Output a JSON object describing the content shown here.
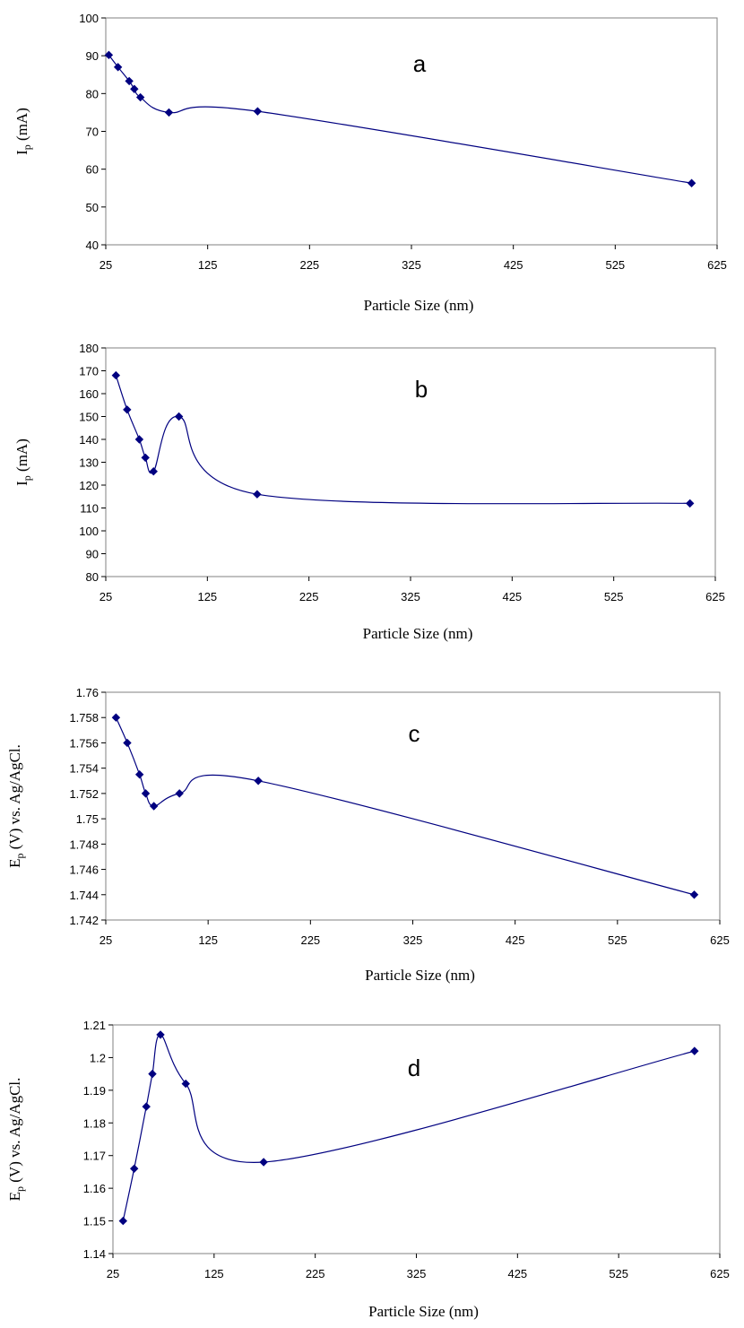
{
  "chart_data": [
    {
      "type": "line",
      "annotation": "a",
      "xlabel": "Particle Size (nm)",
      "ylabel": "Ip (mA)",
      "ylabel_main": "I",
      "ylabel_sub": "p",
      "ylabel_rest": " (mA)",
      "xlim": [
        25,
        625
      ],
      "ylim": [
        40,
        100
      ],
      "xticks": [
        25,
        125,
        225,
        325,
        425,
        525,
        625
      ],
      "yticks": [
        40,
        50,
        60,
        70,
        80,
        90,
        100
      ],
      "ytick_labels": [
        "40",
        "50",
        "60",
        "70",
        "80",
        "90",
        "100"
      ],
      "grid": false,
      "legend": "none",
      "series_color": "#000080",
      "series": [
        {
          "x": [
            28,
            37,
            48,
            53,
            59,
            87,
            174,
            600
          ],
          "y": [
            90.2,
            87,
            83.3,
            81.2,
            79,
            75,
            75.3,
            56.3
          ]
        }
      ]
    },
    {
      "type": "line",
      "annotation": "b",
      "xlabel": "Particle Size (nm)",
      "ylabel": "Ip (mA)",
      "ylabel_main": "I",
      "ylabel_sub": "p",
      "ylabel_rest": " (mA)",
      "xlim": [
        25,
        625
      ],
      "ylim": [
        80,
        180
      ],
      "xticks": [
        25,
        125,
        225,
        325,
        425,
        525,
        625
      ],
      "yticks": [
        80,
        90,
        100,
        110,
        120,
        130,
        140,
        150,
        160,
        170,
        180
      ],
      "ytick_labels": [
        "80",
        "90",
        "100",
        "110",
        "120",
        "130",
        "140",
        "150",
        "160",
        "170",
        "180"
      ],
      "grid": false,
      "legend": "none",
      "series_color": "#000080",
      "series": [
        {
          "x": [
            35,
            46,
            58,
            64,
            72,
            97,
            174,
            600
          ],
          "y": [
            168,
            153,
            140,
            132,
            126,
            150,
            116,
            112
          ]
        }
      ]
    },
    {
      "type": "line",
      "annotation": "c",
      "xlabel": "Particle Size (nm)",
      "ylabel": "Ep (V) vs. Ag/AgCl.",
      "ylabel_main": "E",
      "ylabel_sub": "p",
      "ylabel_rest": " (V) vs. Ag/AgCl.",
      "xlim": [
        25,
        625
      ],
      "ylim": [
        1.742,
        1.76
      ],
      "xticks": [
        25,
        125,
        225,
        325,
        425,
        525,
        625
      ],
      "yticks": [
        1.742,
        1.744,
        1.746,
        1.748,
        1.75,
        1.752,
        1.754,
        1.756,
        1.758,
        1.76
      ],
      "ytick_labels": [
        "1.742",
        "1.744",
        "1.746",
        "1.748",
        "1.75",
        "1.752",
        "1.754",
        "1.756",
        "1.758",
        "1.76"
      ],
      "grid": false,
      "legend": "none",
      "series_color": "#000080",
      "series": [
        {
          "x": [
            35,
            46,
            58,
            64,
            72,
            97,
            174,
            600
          ],
          "y": [
            1.758,
            1.756,
            1.7535,
            1.752,
            1.751,
            1.752,
            1.753,
            1.744
          ]
        }
      ]
    },
    {
      "type": "line",
      "annotation": "d",
      "xlabel": "Particle Size (nm)",
      "ylabel": "Ep (V) vs. Ag/AgCl.",
      "ylabel_main": "E",
      "ylabel_sub": "p",
      "ylabel_rest": " (V) vs. Ag/AgCl.",
      "xlim": [
        25,
        625
      ],
      "ylim": [
        1.14,
        1.21
      ],
      "xticks": [
        25,
        125,
        225,
        325,
        425,
        525,
        625
      ],
      "yticks": [
        1.14,
        1.15,
        1.16,
        1.17,
        1.18,
        1.19,
        1.2,
        1.21
      ],
      "ytick_labels": [
        "1.14",
        "1.15",
        "1.16",
        "1.17",
        "1.18",
        "1.19",
        "1.2",
        "1.21"
      ],
      "grid": false,
      "legend": "none",
      "series_color": "#000080",
      "series": [
        {
          "x": [
            35,
            46,
            58,
            64,
            72,
            97,
            174,
            600
          ],
          "y": [
            1.15,
            1.166,
            1.185,
            1.195,
            1.207,
            1.192,
            1.168,
            1.202
          ]
        }
      ]
    }
  ]
}
